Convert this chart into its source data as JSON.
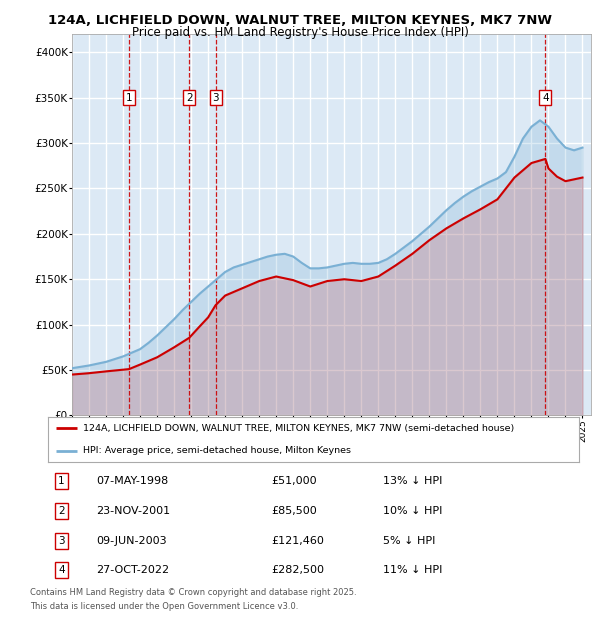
{
  "title_line1": "124A, LICHFIELD DOWN, WALNUT TREE, MILTON KEYNES, MK7 7NW",
  "title_line2": "Price paid vs. HM Land Registry's House Price Index (HPI)",
  "legend_label_red": "124A, LICHFIELD DOWN, WALNUT TREE, MILTON KEYNES, MK7 7NW (semi-detached house)",
  "legend_label_blue": "HPI: Average price, semi-detached house, Milton Keynes",
  "footer_line1": "Contains HM Land Registry data © Crown copyright and database right 2025.",
  "footer_line2": "This data is licensed under the Open Government Licence v3.0.",
  "transactions": [
    {
      "num": 1,
      "date": "07-MAY-1998",
      "price": 51000,
      "pct": "13%",
      "year": 1998.35
    },
    {
      "num": 2,
      "date": "23-NOV-2001",
      "price": 85500,
      "pct": "10%",
      "year": 2001.89
    },
    {
      "num": 3,
      "date": "09-JUN-2003",
      "price": 121460,
      "pct": "5%",
      "year": 2003.44
    },
    {
      "num": 4,
      "date": "27-OCT-2022",
      "price": 282500,
      "pct": "11%",
      "year": 2022.82
    }
  ],
  "ylim": [
    0,
    420000
  ],
  "xlim_start": 1995,
  "xlim_end": 2025.5,
  "background_color": "#dce9f5",
  "grid_color": "#ffffff",
  "red_color": "#cc0000",
  "blue_color": "#7ab0d4",
  "dashed_color": "#cc0000",
  "hpi_years": [
    1995.0,
    1995.5,
    1996.0,
    1996.5,
    1997.0,
    1997.5,
    1998.0,
    1998.5,
    1999.0,
    1999.5,
    2000.0,
    2000.5,
    2001.0,
    2001.5,
    2002.0,
    2002.5,
    2003.0,
    2003.5,
    2004.0,
    2004.5,
    2005.0,
    2005.5,
    2006.0,
    2006.5,
    2007.0,
    2007.5,
    2008.0,
    2008.5,
    2009.0,
    2009.5,
    2010.0,
    2010.5,
    2011.0,
    2011.5,
    2012.0,
    2012.5,
    2013.0,
    2013.5,
    2014.0,
    2014.5,
    2015.0,
    2015.5,
    2016.0,
    2016.5,
    2017.0,
    2017.5,
    2018.0,
    2018.5,
    2019.0,
    2019.5,
    2020.0,
    2020.5,
    2021.0,
    2021.5,
    2022.0,
    2022.5,
    2023.0,
    2023.5,
    2024.0,
    2024.5,
    2025.0
  ],
  "hpi_values": [
    52000,
    53500,
    55000,
    57000,
    59000,
    62000,
    65000,
    69000,
    73000,
    80000,
    88000,
    97000,
    106000,
    116000,
    125000,
    134000,
    142000,
    150000,
    158000,
    163000,
    166000,
    169000,
    172000,
    175000,
    177000,
    178000,
    175000,
    168000,
    162000,
    162000,
    163000,
    165000,
    167000,
    168000,
    167000,
    167000,
    168000,
    172000,
    178000,
    185000,
    192000,
    200000,
    208000,
    217000,
    226000,
    234000,
    241000,
    247000,
    252000,
    257000,
    261000,
    268000,
    285000,
    305000,
    318000,
    325000,
    318000,
    305000,
    295000,
    292000,
    295000
  ],
  "price_years": [
    1995.0,
    1996.0,
    1997.0,
    1998.35,
    1999.0,
    2000.0,
    2001.0,
    2001.89,
    2002.5,
    2003.0,
    2003.44,
    2004.0,
    2005.0,
    2006.0,
    2007.0,
    2008.0,
    2009.0,
    2010.0,
    2011.0,
    2012.0,
    2013.0,
    2014.0,
    2015.0,
    2016.0,
    2017.0,
    2018.0,
    2019.0,
    2020.0,
    2021.0,
    2022.0,
    2022.82,
    2023.0,
    2023.5,
    2024.0,
    2025.0
  ],
  "price_values": [
    45000,
    46500,
    48500,
    51000,
    56000,
    64000,
    75000,
    85500,
    98000,
    108000,
    121460,
    132000,
    140000,
    148000,
    153000,
    149000,
    142000,
    148000,
    150000,
    148000,
    153000,
    165000,
    178000,
    193000,
    206000,
    217000,
    227000,
    238000,
    262000,
    278000,
    282500,
    272000,
    263000,
    258000,
    262000
  ]
}
